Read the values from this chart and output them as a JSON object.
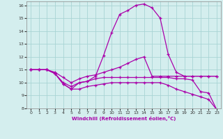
{
  "xlabel": "Windchill (Refroidissement éolien,°C)",
  "xlim": [
    -0.5,
    23.5
  ],
  "ylim": [
    8,
    16.3
  ],
  "yticks": [
    8,
    9,
    10,
    11,
    12,
    13,
    14,
    15,
    16
  ],
  "xticks": [
    0,
    1,
    2,
    3,
    4,
    5,
    6,
    7,
    8,
    9,
    10,
    11,
    12,
    13,
    14,
    15,
    16,
    17,
    18,
    19,
    20,
    21,
    22,
    23
  ],
  "bg_color": "#d4eeee",
  "grid_color": "#a8d4d4",
  "line_color": "#aa00aa",
  "lines": [
    {
      "x": [
        0,
        1,
        2,
        3,
        4,
        5,
        6,
        7,
        8,
        9,
        10,
        11,
        12,
        13,
        14,
        15,
        16,
        17,
        18,
        19,
        20,
        21,
        22,
        23
      ],
      "y": [
        11.0,
        11.0,
        11.0,
        10.7,
        9.9,
        9.5,
        10.0,
        10.1,
        10.5,
        12.1,
        13.9,
        15.3,
        15.6,
        16.0,
        16.1,
        15.8,
        15.0,
        12.2,
        10.8,
        10.5,
        10.5,
        10.5,
        10.5,
        10.5
      ]
    },
    {
      "x": [
        0,
        1,
        2,
        3,
        4,
        5,
        6,
        7,
        8,
        9,
        10,
        11,
        12,
        13,
        14,
        15,
        16,
        17,
        18,
        19,
        20,
        21,
        22,
        23
      ],
      "y": [
        11.0,
        11.0,
        11.0,
        10.8,
        10.4,
        10.0,
        10.3,
        10.5,
        10.6,
        10.8,
        11.0,
        11.2,
        11.5,
        11.8,
        12.0,
        10.5,
        10.5,
        10.5,
        10.5,
        10.5,
        10.5,
        10.5,
        10.5,
        10.5
      ]
    },
    {
      "x": [
        0,
        1,
        2,
        3,
        4,
        5,
        6,
        7,
        8,
        9,
        10,
        11,
        12,
        13,
        14,
        15,
        16,
        17,
        18,
        19,
        20,
        21,
        22,
        23
      ],
      "y": [
        11.0,
        11.0,
        11.0,
        10.7,
        10.0,
        9.7,
        10.0,
        10.1,
        10.3,
        10.4,
        10.4,
        10.4,
        10.4,
        10.4,
        10.4,
        10.4,
        10.4,
        10.4,
        10.3,
        10.3,
        10.2,
        9.3,
        9.2,
        7.9
      ]
    },
    {
      "x": [
        0,
        1,
        2,
        3,
        4,
        5,
        6,
        7,
        8,
        9,
        10,
        11,
        12,
        13,
        14,
        15,
        16,
        17,
        18,
        19,
        20,
        21,
        22,
        23
      ],
      "y": [
        11.0,
        11.0,
        11.0,
        10.7,
        9.9,
        9.5,
        9.5,
        9.7,
        9.8,
        9.9,
        10.0,
        10.0,
        10.0,
        10.0,
        10.0,
        10.0,
        10.0,
        9.8,
        9.5,
        9.3,
        9.1,
        8.9,
        8.7,
        7.9
      ]
    }
  ]
}
